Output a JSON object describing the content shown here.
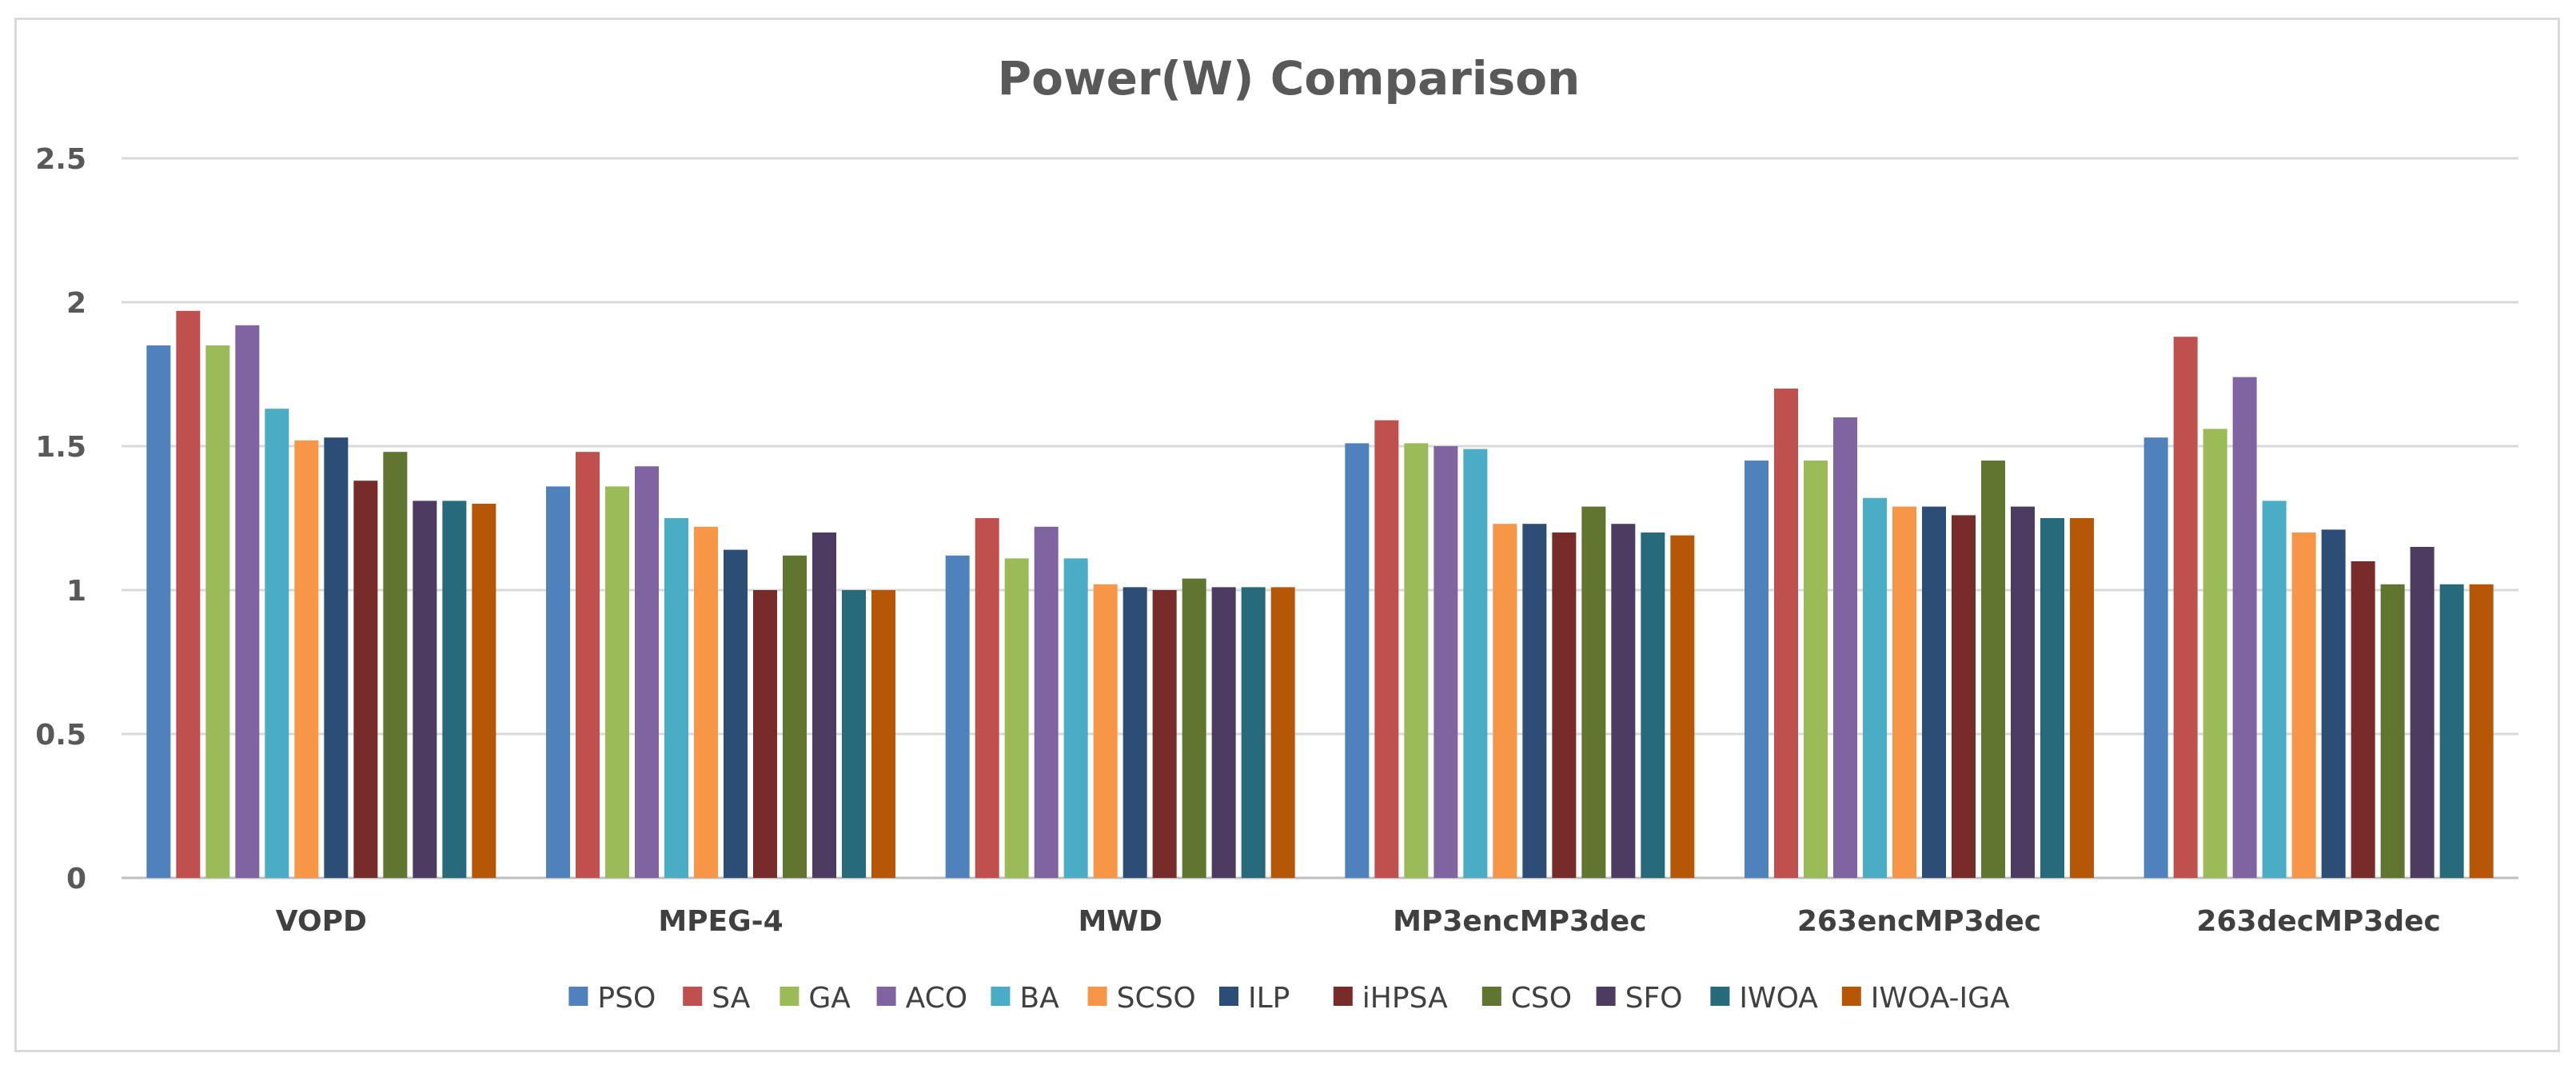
{
  "chart_data": {
    "type": "bar",
    "title": "Power(W) Comparison",
    "xlabel": "",
    "ylabel": "",
    "ylim": [
      0,
      2.5
    ],
    "yticks": [
      "0",
      "0.5",
      "1",
      "1.5",
      "2",
      "2.5"
    ],
    "grid": true,
    "legend_position": "bottom",
    "categories": [
      "VOPD",
      "MPEG-4",
      "MWD",
      "MP3encMP3dec",
      "263encMP3dec",
      "263decMP3dec"
    ],
    "series": [
      {
        "name": "PSO",
        "color": "#4f81bd",
        "values": [
          1.85,
          1.36,
          1.12,
          1.51,
          1.45,
          1.53
        ]
      },
      {
        "name": "SA",
        "color": "#c0504d",
        "values": [
          1.97,
          1.48,
          1.25,
          1.59,
          1.7,
          1.88
        ]
      },
      {
        "name": "GA",
        "color": "#9bbb59",
        "values": [
          1.85,
          1.36,
          1.11,
          1.51,
          1.45,
          1.56
        ]
      },
      {
        "name": "ACO",
        "color": "#8064a2",
        "values": [
          1.92,
          1.43,
          1.22,
          1.5,
          1.6,
          1.74
        ]
      },
      {
        "name": "BA",
        "color": "#4bacc6",
        "values": [
          1.63,
          1.25,
          1.11,
          1.49,
          1.32,
          1.31
        ]
      },
      {
        "name": "SCSO",
        "color": "#f79646",
        "values": [
          1.52,
          1.22,
          1.02,
          1.23,
          1.29,
          1.2
        ]
      },
      {
        "name": "ILP",
        "color": "#2c4d75",
        "values": [
          1.53,
          1.14,
          1.01,
          1.23,
          1.29,
          1.21
        ]
      },
      {
        "name": "iHPSA",
        "color": "#772c2a",
        "values": [
          1.38,
          1.0,
          1.0,
          1.2,
          1.26,
          1.1
        ]
      },
      {
        "name": "CSO",
        "color": "#5f7530",
        "values": [
          1.48,
          1.12,
          1.04,
          1.29,
          1.45,
          1.02
        ]
      },
      {
        "name": "SFO",
        "color": "#4d3b62",
        "values": [
          1.31,
          1.2,
          1.01,
          1.23,
          1.29,
          1.15
        ]
      },
      {
        "name": "IWOA",
        "color": "#276a7c",
        "values": [
          1.31,
          1.0,
          1.01,
          1.2,
          1.25,
          1.02
        ]
      },
      {
        "name": "IWOA-IGA",
        "color": "#b65708",
        "values": [
          1.3,
          1.0,
          1.01,
          1.19,
          1.25,
          1.02
        ]
      }
    ]
  }
}
